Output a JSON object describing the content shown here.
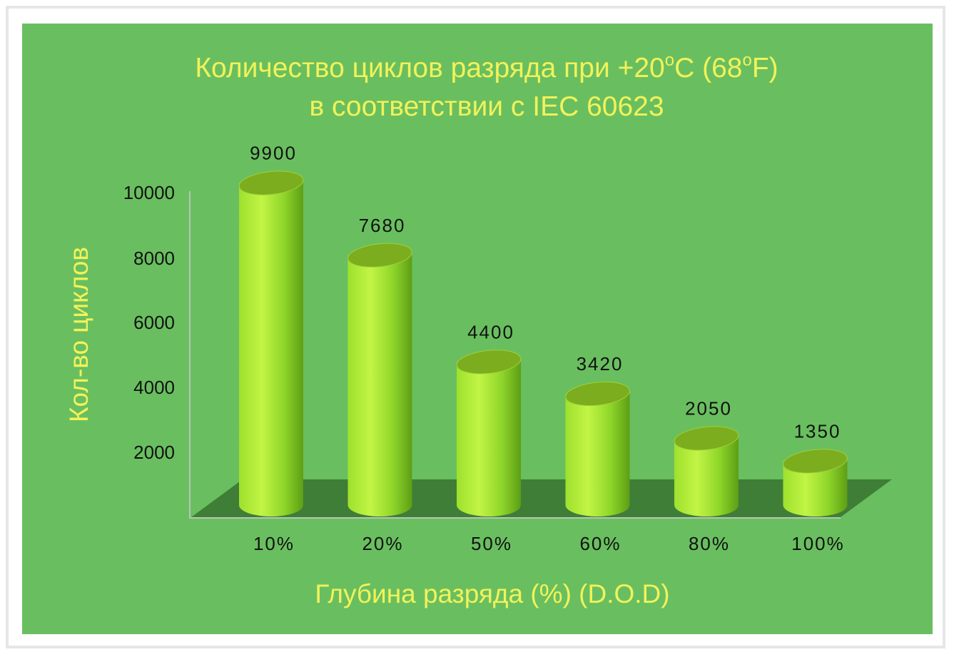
{
  "chart_data": {
    "type": "bar",
    "title": {
      "line1_main": "Количество циклов разряда при +20",
      "line1_sup1": "o",
      "line1_mid": "C (68",
      "line1_sup2": "o",
      "line1_end": "F)",
      "line2": "в соответствии с IEC 60623"
    },
    "xlabel": "Глубина разряда (%) (D.O.D)",
    "ylabel": "Кол-во циклов",
    "categories": [
      "10%",
      "20%",
      "50%",
      "60%",
      "80%",
      "100%"
    ],
    "values": [
      9900,
      7680,
      4400,
      3420,
      2050,
      1350
    ],
    "value_labels": [
      "9900",
      "7680",
      "4400",
      "3420",
      "2050",
      "1350"
    ],
    "y_ticks": [
      "2000",
      "4000",
      "6000",
      "8000",
      "10000"
    ],
    "ylim": [
      0,
      10000
    ],
    "style": "3d-cylinder",
    "colors": {
      "background": "#69bf5f",
      "title": "#f2f25a",
      "bar_light": "#b6f03c",
      "bar_mid": "#8fd62a",
      "bar_dark": "#5d9e15",
      "bar_top": "#7cad1e",
      "floor": "#3f7e37",
      "text": "#111111"
    }
  }
}
